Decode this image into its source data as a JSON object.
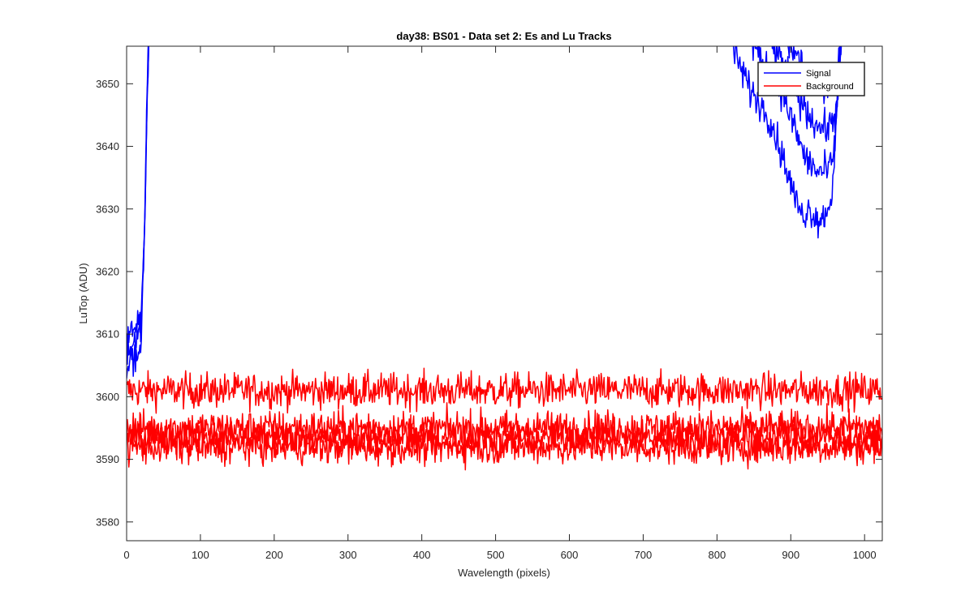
{
  "chart_data": {
    "type": "line",
    "title": "day38: BS01 - Data set 2: Es and Lu Tracks",
    "xlabel": "Wavelength (pixels)",
    "ylabel": "LuTop (ADU)",
    "xlim": [
      0,
      1024
    ],
    "ylim": [
      3577,
      3656
    ],
    "xticks": [
      0,
      100,
      200,
      300,
      400,
      500,
      600,
      700,
      800,
      900,
      1000
    ],
    "yticks": [
      3580,
      3590,
      3600,
      3610,
      3620,
      3630,
      3640,
      3650
    ],
    "grid": false,
    "box": true,
    "legend": {
      "location": "top-right",
      "entries": [
        {
          "label": "Signal",
          "color": "#0000ff"
        },
        {
          "label": "Background",
          "color": "#ff0000"
        }
      ]
    },
    "series": [
      {
        "name": "Signal",
        "color": "#0000ff",
        "noise": 1.3,
        "tracks": [
          {
            "x": [
              0,
              5,
              10,
              15,
              20,
              25,
              27,
              30
            ],
            "y": [
              3603,
              3606,
              3607,
              3607,
              3609,
              3630,
              3645,
              3660
            ]
          },
          {
            "x": [
              0,
              5,
              10,
              15,
              20,
              25,
              28,
              31
            ],
            "y": [
              3607,
              3608,
              3609,
              3610,
              3611,
              3628,
              3648,
              3660
            ]
          },
          {
            "x": [
              0,
              5,
              10,
              15,
              20,
              25,
              28,
              32
            ],
            "y": [
              3609,
              3610,
              3611,
              3612,
              3613,
              3632,
              3650,
              3660
            ]
          },
          {
            "x": [
              810,
              830,
              850,
              870,
              890,
              905,
              915,
              925,
              940,
              950,
              955,
              960,
              965,
              968,
              972
            ],
            "y": [
              3660,
              3653,
              3648,
              3645,
              3638,
              3632,
              3629,
              3630,
              3628,
              3630,
              3632,
              3640,
              3650,
              3656,
              3660
            ]
          },
          {
            "x": [
              830,
              850,
              870,
              890,
              905,
              920,
              935,
              950,
              958,
              962,
              966,
              970
            ],
            "y": [
              3660,
              3656,
              3652,
              3648,
              3643,
              3638,
              3636,
              3636,
              3638,
              3645,
              3655,
              3660
            ]
          },
          {
            "x": [
              855,
              875,
              895,
              910,
              925,
              940,
              952,
              960,
              964,
              968,
              972
            ],
            "y": [
              3660,
              3656,
              3652,
              3648,
              3645,
              3643,
              3643,
              3645,
              3650,
              3656,
              3660
            ]
          },
          {
            "x": [
              875,
              895,
              910,
              925,
              940,
              955,
              963,
              967,
              972
            ],
            "y": [
              3660,
              3657,
              3654,
              3651,
              3650,
              3650,
              3652,
              3656,
              3660
            ]
          }
        ]
      },
      {
        "name": "Background",
        "color": "#ff0000",
        "noise": 1.4,
        "tracks": [
          {
            "x": [
              0,
              1024
            ],
            "y": [
              3601,
              3601
            ]
          },
          {
            "x": [
              0,
              1024
            ],
            "y": [
              3595,
              3595
            ]
          },
          {
            "x": [
              0,
              1024
            ],
            "y": [
              3593.5,
              3593.5
            ]
          },
          {
            "x": [
              0,
              1024
            ],
            "y": [
              3592,
              3592
            ]
          }
        ]
      }
    ]
  }
}
